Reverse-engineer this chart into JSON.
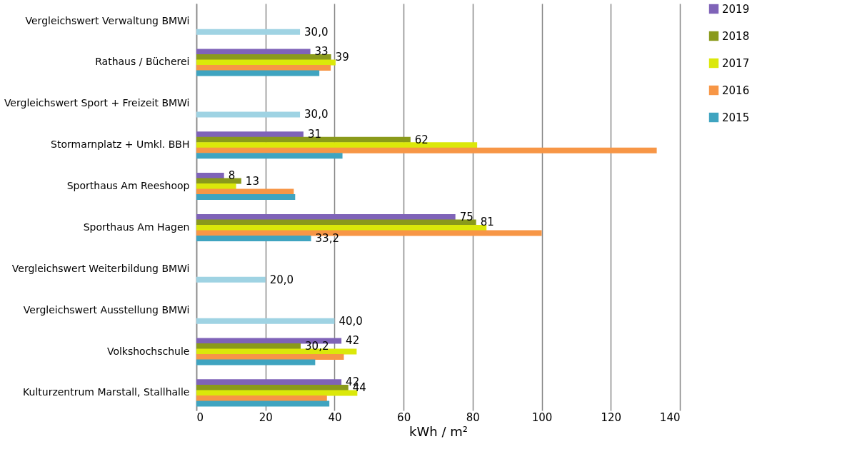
{
  "chart_data": {
    "type": "bar",
    "orientation": "horizontal",
    "xlabel": "kWh / m²",
    "categories": [
      "Vergleichswert Verwaltung BMWi",
      "Rathaus / Bücherei",
      "Vergleichswert Sport + Freizeit BMWi",
      "Stormarnplatz + Umkl. BBH",
      "Sporthaus Am Reeshoop",
      "Sporthaus Am Hagen",
      "Vergleichswert Weiterbildung BMWi",
      "Vergleichswert Ausstellung BMWi",
      "Volkshochschule",
      "Kulturzentrum Marstall, Stallhalle"
    ],
    "series": [
      {
        "name": "2019",
        "color": "#7f63b8",
        "values": [
          null,
          33,
          null,
          31,
          8,
          75,
          null,
          null,
          42,
          42
        ],
        "value_labels": [
          null,
          "33",
          null,
          "31",
          "8",
          "75",
          null,
          null,
          "42",
          "42"
        ]
      },
      {
        "name": "2018",
        "color": "#8a9a1b",
        "values": [
          null,
          39,
          null,
          62,
          13,
          81,
          null,
          null,
          30.2,
          44
        ],
        "value_labels": [
          null,
          "39",
          null,
          "62",
          "13",
          "81",
          null,
          null,
          "30,2",
          "44"
        ]
      },
      {
        "name": "2017",
        "color": "#dbe80a",
        "values": [
          null,
          40.3,
          null,
          81.3,
          11.5,
          84,
          null,
          null,
          46.4,
          46.6
        ]
      },
      {
        "name": "2016",
        "color": "#f79646",
        "values": [
          null,
          38.9,
          null,
          133.3,
          28.2,
          100,
          null,
          null,
          42.7,
          37.8
        ]
      },
      {
        "name": "2015",
        "color": "#3fa4c0",
        "colors": [
          "#9fd3e3",
          "#3fa4c0",
          "#9fd3e3",
          "#3fa4c0",
          "#3fa4c0",
          "#3fa4c0",
          "#9fd3e3",
          "#9fd3e3",
          "#3fa4c0",
          "#3fa4c0"
        ],
        "values": [
          30,
          35.6,
          30,
          42.3,
          28.6,
          33.2,
          20,
          40,
          34.4,
          38.5
        ],
        "value_labels": [
          "30,0",
          null,
          "30,0",
          null,
          null,
          "33,2",
          "20,0",
          "40,0",
          null,
          null
        ]
      }
    ],
    "xlim": [
      0,
      140
    ],
    "xticks": [
      0,
      20,
      40,
      60,
      80,
      100,
      120,
      140
    ],
    "grid": "x",
    "legend": "right"
  }
}
